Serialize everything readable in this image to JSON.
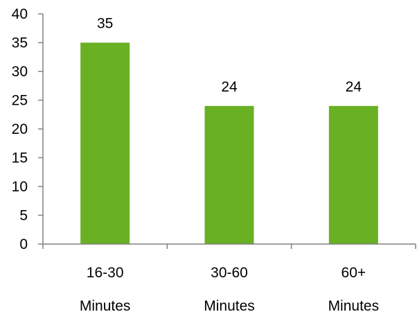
{
  "chart_data": {
    "type": "bar",
    "categories": [
      [
        "16-30",
        "Minutes"
      ],
      [
        "30-60",
        "Minutes"
      ],
      [
        "60+",
        "Minutes"
      ]
    ],
    "values": [
      35,
      24,
      24
    ],
    "data_labels": [
      "35",
      "24",
      "24"
    ],
    "ylim": [
      0,
      40
    ],
    "yticks": [
      0,
      5,
      10,
      15,
      20,
      25,
      30,
      35,
      40
    ],
    "title": "",
    "xlabel": "",
    "ylabel": "",
    "grid": false,
    "legend": "none",
    "bar_color": "#6ab023",
    "axis_color": "#808080"
  }
}
